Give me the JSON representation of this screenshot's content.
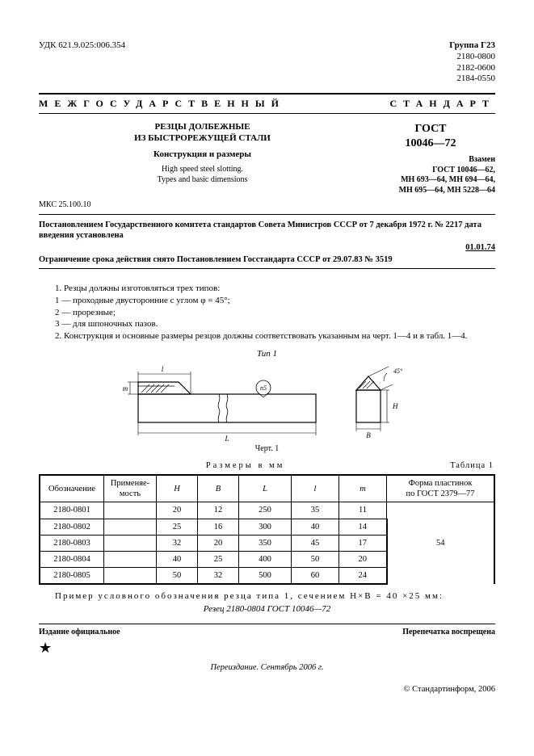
{
  "header": {
    "udk": "УДК 621.9.025:006.354",
    "group": "Группа Г23",
    "codes": [
      "2180-0800",
      "2182-0600",
      "2184-0550"
    ]
  },
  "banner": {
    "left": "МЕЖГОСУДАРСТВЕННЫЙ",
    "right": "СТАНДАРТ"
  },
  "title": {
    "main1": "РЕЗЦЫ ДОЛБЕЖНЫЕ",
    "main2": "ИЗ БЫСТРОРЕЖУЩЕЙ СТАЛИ",
    "sub": "Конструкция и размеры",
    "en1": "High speed steel slotting.",
    "en2": "Types and basic dimensions",
    "gost_label": "ГОСТ",
    "gost_num": "10046—72"
  },
  "replaces": {
    "label": "Взамен",
    "lines": [
      "ГОСТ 10046—62,",
      "МН 693—64, МН 694—64,",
      "МН 695—64, МН 5228—64"
    ]
  },
  "mks": "МКС 25.100.10",
  "decree": {
    "p1": "Постановлением Государственного комитета стандартов Совета Министров СССР от 7 декабря 1972 г. № 2217 дата введения установлена",
    "date": "01.01.74",
    "p2": "Ограничение срока действия снято Постановлением Госстандарта СССР от 29.07.83 № 3519"
  },
  "body": {
    "p1": "1. Резцы должны изготовляться трех типов:",
    "p1a": "1 — проходные двусторонние с углом φ = 45°;",
    "p1b": "2 — прорезные;",
    "p1c": "3 — для шпоночных пазов.",
    "p2": "2. Конструкция и основные размеры резцов должны соответствовать указанным на черт. 1—4 и в табл. 1—4."
  },
  "figure": {
    "type_label": "Тип   1",
    "caption": "Черт. 1",
    "labels": {
      "l_small": "l",
      "L_big": "L",
      "m": "m",
      "n5": "n5",
      "angle": "45°",
      "H": "H",
      "B": "B"
    },
    "stroke": "#000000",
    "fill": "#ffffff",
    "hatch": "#000000"
  },
  "table": {
    "label_left": "",
    "label_mid": "Размеры в мм",
    "label_right": "Таблица 1",
    "columns": [
      "Обозначение",
      "Применяе-\nмость",
      "H",
      "B",
      "L",
      "l",
      "m",
      "Форма пластинок\nпо ГОСТ 2379—77"
    ],
    "col_align": [
      "center",
      "center",
      "center",
      "center",
      "center",
      "center",
      "center",
      "center"
    ],
    "rows": [
      [
        "2180-0801",
        "",
        "20",
        "12",
        "250",
        "35",
        "11"
      ],
      [
        "2180-0802",
        "",
        "25",
        "16",
        "300",
        "40",
        "14"
      ],
      [
        "2180-0803",
        "",
        "32",
        "20",
        "350",
        "45",
        "17"
      ],
      [
        "2180-0804",
        "",
        "40",
        "25",
        "400",
        "50",
        "20"
      ],
      [
        "2180-0805",
        "",
        "50",
        "32",
        "500",
        "60",
        "24"
      ]
    ],
    "merged_last": "54"
  },
  "example": {
    "line1": "Пример  условного  обозначения  резца типа 1,  сечением  H×B = 40 ×25 мм:",
    "line2": "Резец 2180-0804 ГОСТ 10046—72"
  },
  "footer": {
    "left": "Издание официальное",
    "right": "Перепечатка воспрещена",
    "star": "★",
    "reissue": "Переиздание. Сентябрь 2006 г.",
    "copyright": "© Стандартинформ, 2006"
  }
}
